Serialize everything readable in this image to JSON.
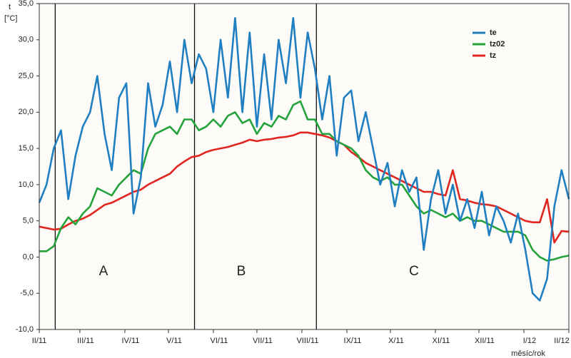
{
  "chart_data": {
    "type": "line",
    "y_label": "t",
    "y_unit": "[°C]",
    "x_label": "měsíc/rok",
    "annotations": [
      "A",
      "B",
      "C"
    ],
    "dividers": [
      11,
      107,
      191
    ],
    "x": [
      0,
      5,
      10,
      15,
      20,
      25,
      30,
      35,
      40,
      45,
      50,
      55,
      60,
      65,
      70,
      75,
      80,
      85,
      90,
      95,
      100,
      105,
      110,
      115,
      120,
      125,
      130,
      135,
      140,
      145,
      150,
      155,
      160,
      165,
      170,
      175,
      180,
      185,
      190,
      195,
      200,
      205,
      210,
      215,
      220,
      225,
      230,
      235,
      240,
      245,
      250,
      255,
      260,
      265,
      270,
      275,
      280,
      285,
      290,
      295,
      300,
      305,
      310,
      315,
      320,
      325,
      330,
      335,
      340,
      345,
      350,
      355,
      360,
      365
    ],
    "xlim": [
      0,
      365
    ],
    "xticks": [
      {
        "value": 0,
        "label": "II/11"
      },
      {
        "value": 28,
        "label": "III/11"
      },
      {
        "value": 59,
        "label": "IV/11"
      },
      {
        "value": 89,
        "label": "V/11"
      },
      {
        "value": 120,
        "label": "VI/11"
      },
      {
        "value": 150,
        "label": "VII/11"
      },
      {
        "value": 181,
        "label": "VIII/11"
      },
      {
        "value": 212,
        "label": "IX/11"
      },
      {
        "value": 242,
        "label": "X/11"
      },
      {
        "value": 273,
        "label": "XI/11"
      },
      {
        "value": 303,
        "label": "XII/11"
      },
      {
        "value": 334,
        "label": "I/12"
      },
      {
        "value": 365,
        "label": "II/12"
      }
    ],
    "ylim": [
      -10,
      35
    ],
    "yticks": [
      {
        "value": 35,
        "label": "35,0"
      },
      {
        "value": 30,
        "label": "30,0"
      },
      {
        "value": 25,
        "label": "25,0"
      },
      {
        "value": 20,
        "label": "20,0"
      },
      {
        "value": 15,
        "label": "15,0"
      },
      {
        "value": 10,
        "label": "10,0"
      },
      {
        "value": 5,
        "label": "5,0"
      },
      {
        "value": 0,
        "label": "0,0"
      },
      {
        "value": -5,
        "label": "-5,0"
      },
      {
        "value": -10,
        "label": "-10,0"
      }
    ],
    "legend": "upper right",
    "series": [
      {
        "name": "te",
        "color": "#1f7fc0",
        "values": [
          7.5,
          10,
          15,
          17.5,
          8,
          14,
          18,
          20,
          25,
          17,
          12,
          22,
          24,
          6,
          11,
          24,
          18,
          21,
          27,
          20,
          30,
          24,
          28,
          26,
          20,
          30,
          22,
          33,
          20,
          31,
          18,
          28,
          19,
          30,
          24,
          33,
          22,
          31,
          26,
          19,
          25,
          14,
          22,
          23,
          16,
          20,
          15,
          10,
          13,
          7,
          12,
          9,
          11,
          1,
          8,
          12,
          6,
          10,
          5,
          8,
          4,
          9,
          3,
          7,
          5,
          2,
          6,
          1,
          -5,
          -6,
          -3,
          7,
          12,
          8
        ]
      },
      {
        "name": "tz02",
        "color": "#24a33c",
        "values": [
          0.8,
          0.8,
          1.5,
          4,
          5.5,
          4.5,
          6,
          7,
          9.5,
          9,
          8.5,
          10,
          11,
          12,
          11.5,
          15,
          17,
          17.5,
          18,
          17,
          19,
          19,
          17.5,
          18,
          19,
          18,
          19.5,
          20,
          18.5,
          19,
          17,
          18.5,
          18,
          19.5,
          19,
          21,
          21.5,
          19,
          19,
          17,
          17,
          16,
          15.5,
          15,
          14,
          12,
          11,
          10.5,
          11,
          10,
          10,
          8.5,
          7,
          6,
          6.5,
          6,
          5.5,
          6,
          5,
          5.5,
          5,
          5,
          4.5,
          4,
          3.5,
          3.5,
          3.5,
          3,
          1,
          0,
          -0.5,
          -0.3,
          0,
          0.2
        ]
      },
      {
        "name": "tz",
        "color": "#e0261f",
        "values": [
          4.2,
          4,
          3.8,
          3.9,
          4.5,
          5,
          5.3,
          5.8,
          6.5,
          7.2,
          7.5,
          8,
          8.5,
          9,
          9.3,
          10,
          10.5,
          11,
          11.5,
          12.5,
          13.2,
          13.8,
          14,
          14.5,
          14.8,
          15,
          15.2,
          15.5,
          15.8,
          16.2,
          16,
          16.2,
          16.3,
          16.5,
          16.6,
          16.8,
          17.2,
          17.2,
          17,
          16.8,
          16.5,
          16,
          15.5,
          14.5,
          13.8,
          13,
          12.5,
          12,
          11.5,
          11,
          10.5,
          10,
          9.5,
          9,
          9,
          8.7,
          8.5,
          12,
          8,
          7.8,
          7.5,
          7.3,
          7.2,
          7,
          6.5,
          6,
          5.5,
          5,
          4.8,
          4.8,
          8,
          2,
          3.6,
          3.5
        ]
      }
    ]
  }
}
